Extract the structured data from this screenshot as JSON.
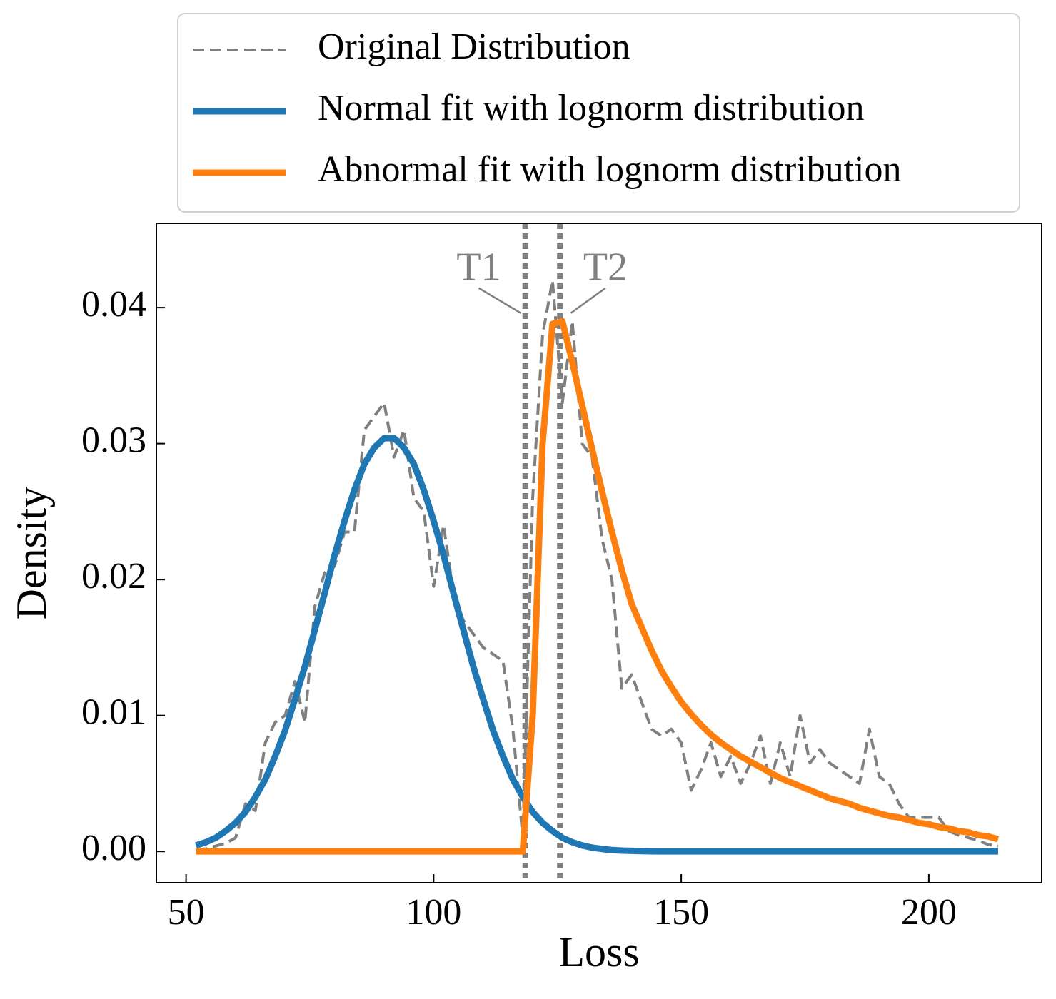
{
  "chart_data": {
    "type": "line",
    "xlabel": "Loss",
    "ylabel": "Density",
    "xlim": [
      44,
      222.8
    ],
    "ylim": [
      -0.0023,
      0.0462
    ],
    "xticks": [
      50,
      100,
      150,
      200
    ],
    "yticks": [
      {
        "value": 0,
        "label": "0.00"
      },
      0.01,
      0.02,
      0.03,
      0.04
    ],
    "tick_direction": "in",
    "legend": "upper center outside",
    "x": [
      52,
      54,
      56,
      58,
      60,
      62,
      64,
      66,
      68,
      70,
      72,
      74,
      76,
      78,
      80,
      82,
      84,
      86,
      88,
      90,
      92,
      94,
      96,
      98,
      100,
      102,
      104,
      106,
      108,
      110,
      112,
      114,
      116,
      118,
      120,
      122,
      124,
      126,
      128,
      130,
      132,
      134,
      136,
      138,
      140,
      142,
      144,
      146,
      148,
      150,
      152,
      154,
      156,
      158,
      160,
      162,
      164,
      166,
      168,
      170,
      172,
      174,
      176,
      178,
      180,
      182,
      184,
      186,
      188,
      190,
      192,
      194,
      196,
      198,
      200,
      202,
      204,
      206,
      208,
      210,
      212,
      214
    ],
    "series": [
      {
        "name": "Original Distribution",
        "color": "#808080",
        "style": "dashed",
        "values": [
          0.0001,
          0.0002,
          0.0004,
          0.0006,
          0.001,
          0.0035,
          0.003,
          0.008,
          0.0095,
          0.01,
          0.0125,
          0.0095,
          0.018,
          0.0205,
          0.021,
          0.0235,
          0.0235,
          0.031,
          0.032,
          0.033,
          0.029,
          0.031,
          0.026,
          0.025,
          0.0195,
          0.024,
          0.019,
          0.017,
          0.016,
          0.015,
          0.0145,
          0.014,
          0.009,
          0.001,
          0.026,
          0.038,
          0.042,
          0.033,
          0.039,
          0.03,
          0.029,
          0.023,
          0.02,
          0.012,
          0.013,
          0.011,
          0.009,
          0.0085,
          0.009,
          0.008,
          0.0045,
          0.006,
          0.008,
          0.0055,
          0.007,
          0.005,
          0.0065,
          0.0085,
          0.005,
          0.008,
          0.0055,
          0.01,
          0.0065,
          0.0075,
          0.0065,
          0.006,
          0.0055,
          0.005,
          0.009,
          0.0055,
          0.005,
          0.0035,
          0.0025,
          0.0025,
          0.0025,
          0.0025,
          0.0015,
          0.0012,
          0.001,
          0.0008,
          0.0005,
          0.0004
        ]
      },
      {
        "name": "Normal fit with lognorm distribution",
        "color": "#1f77b4",
        "style": "solid",
        "values": [
          0.00044,
          0.00068,
          0.001,
          0.0015,
          0.0021,
          0.0029,
          0.004,
          0.0053,
          0.007,
          0.0089,
          0.0112,
          0.0136,
          0.0163,
          0.019,
          0.0218,
          0.0243,
          0.0266,
          0.0285,
          0.0297,
          0.0304,
          0.0304,
          0.0297,
          0.0285,
          0.0266,
          0.0243,
          0.0218,
          0.019,
          0.0163,
          0.0136,
          0.0112,
          0.0089,
          0.007,
          0.0053,
          0.004,
          0.0029,
          0.0021,
          0.0015,
          0.001,
          0.00068,
          0.00044,
          0.00028,
          0.00018,
          0.0001,
          6e-05,
          4e-05,
          2e-05,
          1e-05,
          0,
          0,
          0,
          0,
          0,
          0,
          0,
          0,
          0,
          0,
          0,
          0,
          0,
          0,
          0,
          0,
          0,
          0,
          0,
          0,
          0,
          0,
          0,
          0,
          0,
          0,
          0,
          0,
          0,
          0,
          0,
          0,
          0,
          0,
          0
        ]
      },
      {
        "name": "Abnormal fit with lognorm distribution",
        "color": "#ff7f0e",
        "style": "solid",
        "values": [
          0,
          0,
          0,
          0,
          0,
          0,
          0,
          0,
          0,
          0,
          0,
          0,
          0,
          0,
          0,
          0,
          0,
          0,
          0,
          0,
          0,
          0,
          0,
          0,
          0,
          0,
          0,
          0,
          0,
          0,
          0,
          0,
          0,
          0,
          0.01,
          0.03,
          0.0388,
          0.039,
          0.036,
          0.0328,
          0.0296,
          0.0265,
          0.0235,
          0.0207,
          0.0182,
          0.0165,
          0.0148,
          0.0133,
          0.0121,
          0.011,
          0.0101,
          0.0093,
          0.0086,
          0.008,
          0.0075,
          0.007,
          0.0066,
          0.0062,
          0.0058,
          0.0054,
          0.0051,
          0.0048,
          0.0045,
          0.0042,
          0.0039,
          0.0037,
          0.0035,
          0.0032,
          0.003,
          0.0028,
          0.0026,
          0.0025,
          0.0023,
          0.0021,
          0.002,
          0.0018,
          0.0017,
          0.0015,
          0.0014,
          0.0012,
          0.0011,
          0.0009
        ]
      }
    ],
    "vlines": [
      118.5,
      125.5
    ],
    "vline_color": "#808080",
    "annotations": [
      {
        "text": "T1",
        "xy": [
          117.6,
          0.0396
        ],
        "xytext": [
          109.1,
          0.0427
        ]
      },
      {
        "text": "T2",
        "xy": [
          127.7,
          0.0396
        ],
        "xytext": [
          134.7,
          0.0427
        ]
      }
    ]
  }
}
